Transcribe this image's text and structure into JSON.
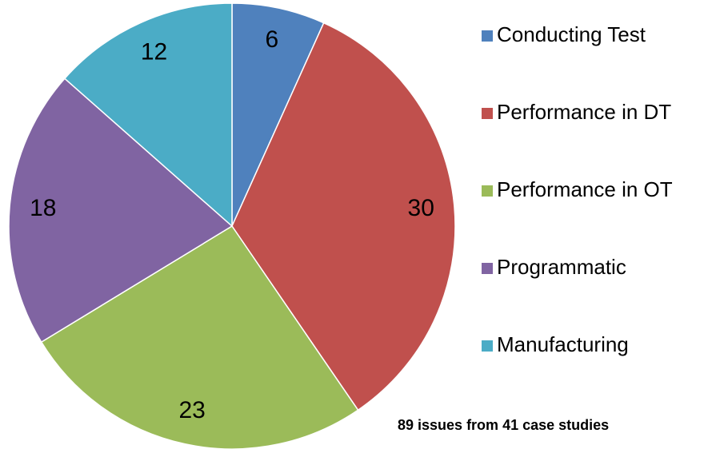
{
  "chart_data": {
    "type": "pie",
    "categories": [
      "Conducting Test",
      "Performance in DT",
      "Performance in OT",
      "Programmatic",
      "Manufacturing"
    ],
    "values": [
      6,
      30,
      23,
      18,
      12
    ],
    "colors": [
      "#4f81bd",
      "#c0504d",
      "#9bbb59",
      "#8064a2",
      "#4bacc6"
    ],
    "annotation": "89 issues from 41 case studies",
    "legend": "right"
  }
}
